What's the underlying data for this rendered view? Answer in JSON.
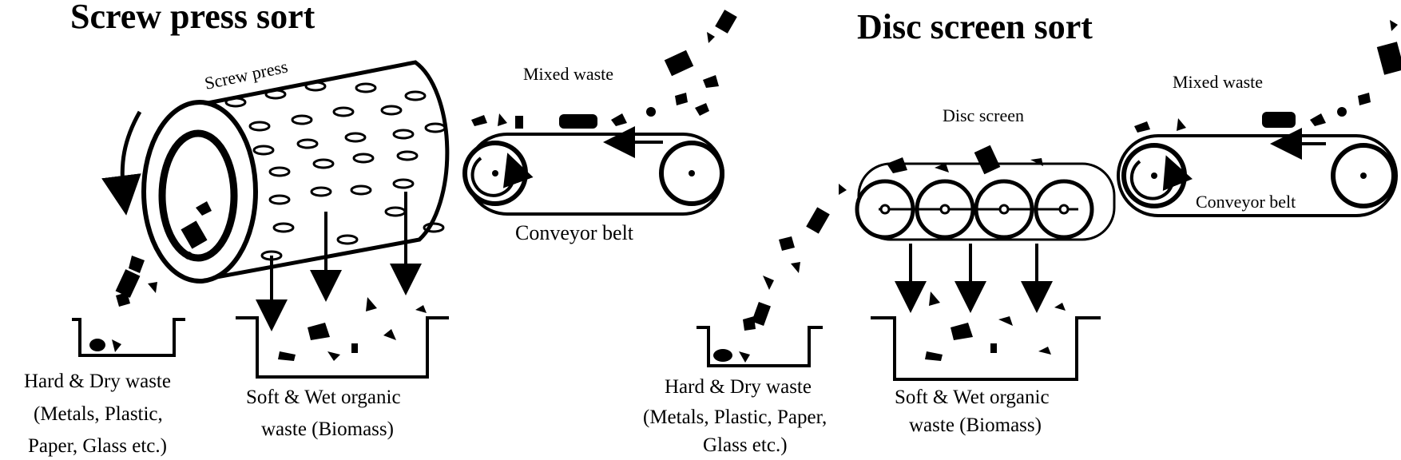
{
  "left": {
    "title": "Screw press sort",
    "screw_press_label": "Screw press",
    "mixed_waste_label": "Mixed waste",
    "conveyor_label": "Conveyor belt",
    "hard_dry": {
      "line1": "Hard & Dry waste",
      "line2": "(Metals, Plastic,",
      "line3": "Paper, Glass etc.)"
    },
    "soft_wet": {
      "line1": "Soft & Wet organic",
      "line2": "waste (Biomass)"
    }
  },
  "right": {
    "title": "Disc screen sort",
    "disc_screen_label": "Disc screen",
    "mixed_waste_label": "Mixed waste",
    "conveyor_label": "Conveyor belt",
    "hard_dry": {
      "line1": "Hard & Dry waste",
      "line2": "(Metals, Plastic, Paper,",
      "line3": "Glass etc.)"
    },
    "soft_wet": {
      "line1": "Soft & Wet organic",
      "line2": "waste (Biomass)"
    }
  }
}
